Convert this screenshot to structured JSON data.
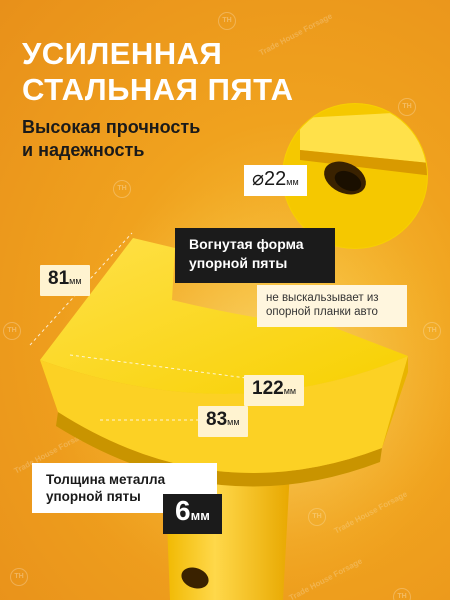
{
  "headline": {
    "line1": "УСИЛЕННАЯ",
    "line2": "СТАЛЬНАЯ ПЯТА"
  },
  "subline": {
    "line1": "Высокая прочность",
    "line2": "и надежность"
  },
  "dimensions": {
    "diameter": {
      "symbol": "⌀",
      "value": "22",
      "unit": "мм"
    },
    "width": {
      "value": "81",
      "unit": "мм"
    },
    "length_outer": {
      "value": "122",
      "unit": "мм"
    },
    "length_inner": {
      "value": "83",
      "unit": "мм"
    }
  },
  "callouts": {
    "shape_title_1": "Вогнутая форма",
    "shape_title_2": "упорной пяты",
    "shape_note_1": "не выскальзывает из",
    "shape_note_2": "опорной планки авто"
  },
  "thickness": {
    "label_1": "Толщина металла",
    "label_2": "упорной пяты",
    "value": "6",
    "unit": "мм"
  },
  "watermark": {
    "text": "Trade House Forsage",
    "logo": "TH"
  },
  "colors": {
    "background": "#f0a21e",
    "metal": "#f7d000",
    "dark": "#1b1b1b",
    "accent_light": "#fff3d0"
  }
}
